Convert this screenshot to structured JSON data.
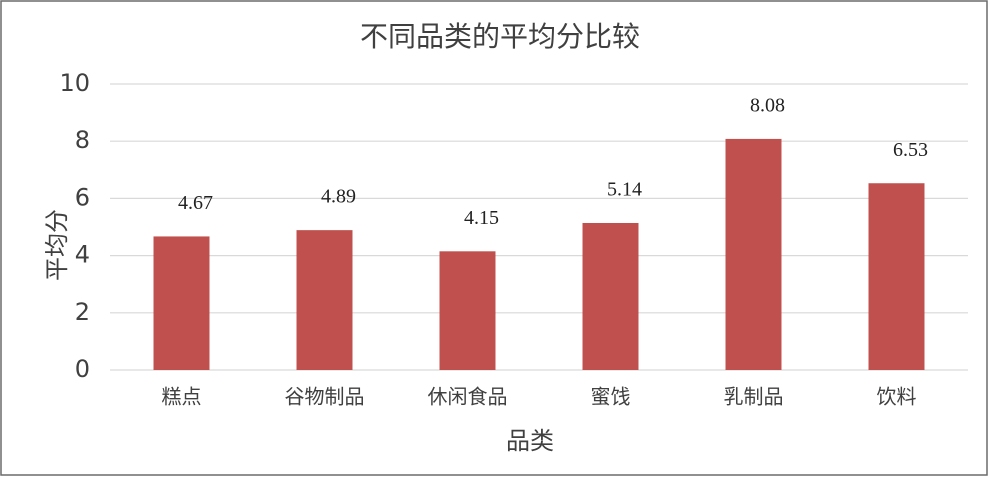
{
  "chart_data": {
    "type": "bar",
    "title": "不同品类的平均分比较",
    "x_label": "品类",
    "y_label": "平均分",
    "categories": [
      "糕点",
      "谷物制品",
      "休闲食品",
      "蜜饯",
      "乳制品",
      "饮料"
    ],
    "values": [
      4.67,
      4.89,
      4.15,
      5.14,
      8.08,
      6.53
    ],
    "color": "#c0504d",
    "ylim": [
      0,
      10
    ],
    "yticks": [
      0,
      2,
      4,
      6,
      8,
      10
    ],
    "grid": true
  }
}
